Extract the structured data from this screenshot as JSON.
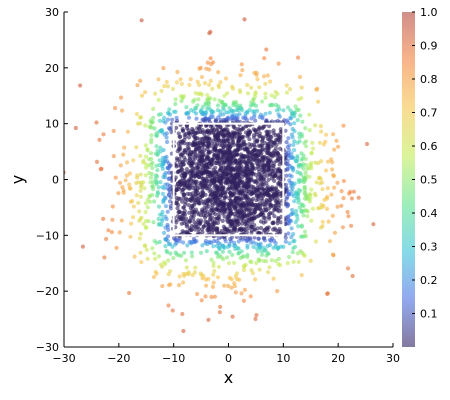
{
  "chart_data": {
    "type": "scatter",
    "xlabel": "x",
    "ylabel": "y",
    "xlim": [
      -30,
      30
    ],
    "ylim": [
      -30,
      30
    ],
    "xticks": [
      -30,
      -20,
      -10,
      0,
      10,
      20,
      30
    ],
    "yticks": [
      -30,
      -20,
      -10,
      0,
      10,
      20,
      30
    ],
    "grid": false,
    "color_scale": {
      "range": [
        0,
        1.0
      ],
      "ticks": [
        0.1,
        0.2,
        0.3,
        0.4,
        0.5,
        0.6,
        0.7,
        0.8,
        0.9,
        1.0
      ],
      "colors": [
        "#32215f",
        "#4a6fe3",
        "#36c2d8",
        "#5ee38a",
        "#c3ec57",
        "#f6c54b",
        "#f4823b",
        "#b2433b"
      ]
    },
    "highlight_box": {
      "x": [
        -10,
        10
      ],
      "y": [
        -10,
        10
      ],
      "color": "#ffffff"
    },
    "point_count": 3000,
    "point_distribution": "bivariate normal centered at (0, 0), standard deviation about 8 in x and y; color increases with distance outside the square [-10, 10] x [-10, 10]"
  }
}
